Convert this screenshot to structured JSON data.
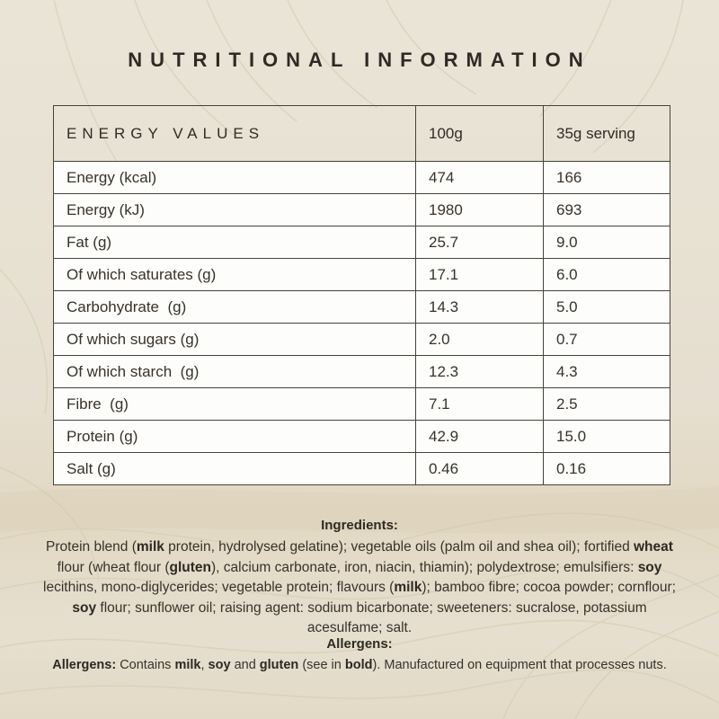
{
  "page": {
    "title": "NUTRITIONAL INFORMATION"
  },
  "colors": {
    "background_cream": "#e7e0d1",
    "background_tan": "#e2d8c3",
    "row_white": "#fdfdfb",
    "text_dark": "#2e2a24",
    "border_dark": "#47423a",
    "contour_line": "#d8cdb5"
  },
  "table": {
    "header": {
      "col1": "ENERGY VALUES",
      "col2": "100g",
      "col3": "35g serving"
    },
    "rows": [
      {
        "label": "Energy (kcal)",
        "per100g": "474",
        "per35g": "166"
      },
      {
        "label": "Energy (kJ)",
        "per100g": "1980",
        "per35g": "693"
      },
      {
        "label": "Fat (g)",
        "per100g": "25.7",
        "per35g": "9.0"
      },
      {
        "label": "Of which saturates (g)",
        "per100g": "17.1",
        "per35g": "6.0"
      },
      {
        "label": "Carbohydrate  (g)",
        "per100g": "14.3",
        "per35g": "5.0"
      },
      {
        "label": "Of which sugars (g)",
        "per100g": "2.0",
        "per35g": "0.7"
      },
      {
        "label": "Of which starch  (g)",
        "per100g": "12.3",
        "per35g": "4.3"
      },
      {
        "label": "Fibre  (g)",
        "per100g": "7.1",
        "per35g": "2.5"
      },
      {
        "label": "Protein (g)",
        "per100g": "42.9",
        "per35g": "15.0"
      },
      {
        "label": "Salt (g)",
        "per100g": "0.46",
        "per35g": "0.16"
      }
    ]
  },
  "ingredients": {
    "heading": "Ingredients:",
    "segments": [
      {
        "text": "Protein blend (",
        "bold": false
      },
      {
        "text": "milk",
        "bold": true
      },
      {
        "text": " protein, hydrolysed gelatine); vegetable oils (palm oil and shea oil); fortified ",
        "bold": false
      },
      {
        "text": "wheat",
        "bold": true
      },
      {
        "text": " flour (wheat flour (",
        "bold": false
      },
      {
        "text": "gluten",
        "bold": true
      },
      {
        "text": "), calcium carbonate, iron, niacin, thiamin); polydextrose; emulsifiers: ",
        "bold": false
      },
      {
        "text": "soy",
        "bold": true
      },
      {
        "text": " lecithins, mono-diglycerides; vegetable protein; flavours (",
        "bold": false
      },
      {
        "text": "milk",
        "bold": true
      },
      {
        "text": "); bamboo fibre; cocoa powder; cornflour; ",
        "bold": false
      },
      {
        "text": "soy",
        "bold": true
      },
      {
        "text": " flour; sunflower oil; raising agent: sodium bicarbonate; sweeteners: sucralose, potassium acesulfame; salt.",
        "bold": false
      }
    ]
  },
  "allergens": {
    "heading": "Allergens:",
    "segments": [
      {
        "text": "Allergens:",
        "bold": true
      },
      {
        "text": " Contains ",
        "bold": false
      },
      {
        "text": "milk",
        "bold": true
      },
      {
        "text": ", ",
        "bold": false
      },
      {
        "text": "soy",
        "bold": true
      },
      {
        "text": " and ",
        "bold": false
      },
      {
        "text": "gluten",
        "bold": true
      },
      {
        "text": " (see in ",
        "bold": false
      },
      {
        "text": "bold",
        "bold": true
      },
      {
        "text": "). Manufactured on equipment that processes nuts.",
        "bold": false
      }
    ]
  }
}
